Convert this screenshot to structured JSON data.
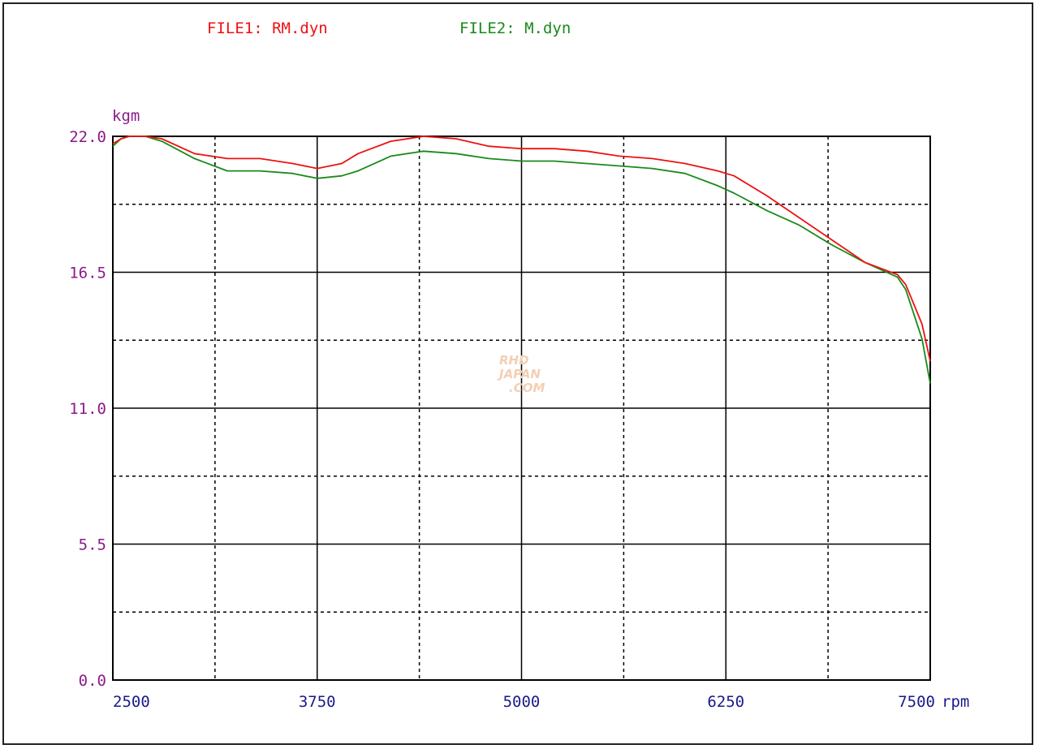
{
  "legend": {
    "file1": "FILE1: RM.dyn",
    "file2": "FILE2: M.dyn"
  },
  "watermark": {
    "line1": "RHD",
    "line2": "JAPAN",
    "line3": ".COM"
  },
  "chart_data": {
    "type": "line",
    "xlabel": "rpm",
    "ylabel": "kgm",
    "xlim": [
      2500,
      7500
    ],
    "ylim": [
      0.0,
      22.0
    ],
    "x_ticks": [
      "2500",
      "3750",
      "5000",
      "6250",
      "7500"
    ],
    "y_ticks": [
      "0.0",
      "5.5",
      "11.0",
      "16.5",
      "22.0"
    ],
    "grid": true,
    "legend_position": "top",
    "series": [
      {
        "name": "FILE1: RM.dyn",
        "color": "#ee1111",
        "x": [
          2500,
          2550,
          2600,
          2700,
          2800,
          3000,
          3200,
          3400,
          3600,
          3750,
          3900,
          4000,
          4200,
          4400,
          4600,
          4800,
          5000,
          5200,
          5400,
          5600,
          5800,
          6000,
          6200,
          6300,
          6500,
          6700,
          6900,
          7100,
          7300,
          7350,
          7400,
          7450,
          7500
        ],
        "values": [
          21.7,
          21.9,
          22.0,
          22.0,
          21.9,
          21.3,
          21.1,
          21.1,
          20.9,
          20.7,
          20.9,
          21.3,
          21.8,
          22.0,
          21.9,
          21.6,
          21.5,
          21.5,
          21.4,
          21.2,
          21.1,
          20.9,
          20.6,
          20.4,
          19.6,
          18.7,
          17.8,
          16.9,
          16.4,
          16.0,
          15.2,
          14.4,
          12.9
        ]
      },
      {
        "name": "FILE2: M.dyn",
        "color": "#1a8a1a",
        "x": [
          2500,
          2550,
          2600,
          2700,
          2800,
          3000,
          3200,
          3400,
          3600,
          3750,
          3900,
          4000,
          4200,
          4400,
          4600,
          4800,
          5000,
          5200,
          5400,
          5600,
          5800,
          6000,
          6200,
          6300,
          6500,
          6700,
          6900,
          7100,
          7300,
          7350,
          7400,
          7450,
          7500
        ],
        "values": [
          21.6,
          21.9,
          22.0,
          22.0,
          21.8,
          21.1,
          20.6,
          20.6,
          20.5,
          20.3,
          20.4,
          20.6,
          21.2,
          21.4,
          21.3,
          21.1,
          21.0,
          21.0,
          20.9,
          20.8,
          20.7,
          20.5,
          20.0,
          19.7,
          19.0,
          18.4,
          17.6,
          16.9,
          16.3,
          15.8,
          14.8,
          13.8,
          12.0
        ]
      }
    ]
  }
}
